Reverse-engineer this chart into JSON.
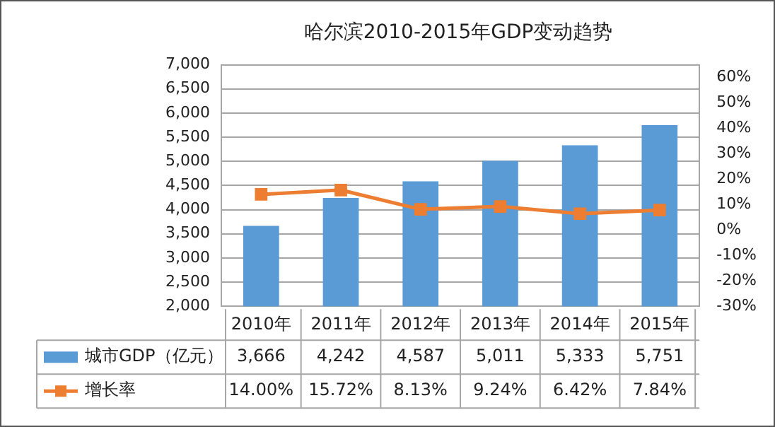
{
  "chart_data": {
    "type": "bar",
    "title": "哈尔滨2010-2015年GDP变动趋势",
    "categories": [
      "2010年",
      "2011年",
      "2012年",
      "2013年",
      "2014年",
      "2015年"
    ],
    "series": [
      {
        "name": "城市GDP（亿元）",
        "color": "#5b9bd5",
        "values": [
          3666,
          4242,
          4587,
          5011,
          5333,
          5751
        ],
        "value_labels": [
          "3,666",
          "4,242",
          "4,587",
          "5,011",
          "5,333",
          "5,751"
        ]
      },
      {
        "name": "增长率",
        "type": "line",
        "axis": "y2",
        "color": "#ed7d31",
        "marker": "square",
        "values": [
          14.0,
          15.72,
          8.13,
          9.24,
          6.42,
          7.84
        ],
        "value_labels": [
          "14.00%",
          "15.72%",
          "8.13%",
          "9.24%",
          "6.42%",
          "7.84%"
        ]
      }
    ],
    "ylim": [
      2000,
      7000
    ],
    "yticks": [
      {
        "value": 2000,
        "label": "2,000"
      },
      {
        "value": 2500,
        "label": "2,500"
      },
      {
        "value": 3000,
        "label": "3,000"
      },
      {
        "value": 3500,
        "label": "3,500"
      },
      {
        "value": 4000,
        "label": "4,000"
      },
      {
        "value": 4500,
        "label": "4,500"
      },
      {
        "value": 5000,
        "label": "5,000"
      },
      {
        "value": 5500,
        "label": "5,500"
      },
      {
        "value": 6000,
        "label": "6,000"
      },
      {
        "value": 6500,
        "label": "6,500"
      },
      {
        "value": 7000,
        "label": "7,000"
      }
    ],
    "y2lim": [
      -30,
      65
    ],
    "y2ticks": [
      {
        "value": -30,
        "label": "-30%"
      },
      {
        "value": -20,
        "label": "-20%"
      },
      {
        "value": -10,
        "label": "-10%"
      },
      {
        "value": 0,
        "label": "0%"
      },
      {
        "value": 10,
        "label": "10%"
      },
      {
        "value": 20,
        "label": "20%"
      },
      {
        "value": 30,
        "label": "30%"
      },
      {
        "value": 40,
        "label": "40%"
      },
      {
        "value": 50,
        "label": "50%"
      },
      {
        "value": 60,
        "label": "60%"
      }
    ],
    "grid": "y",
    "legend": "bottom",
    "data_labels": true
  }
}
